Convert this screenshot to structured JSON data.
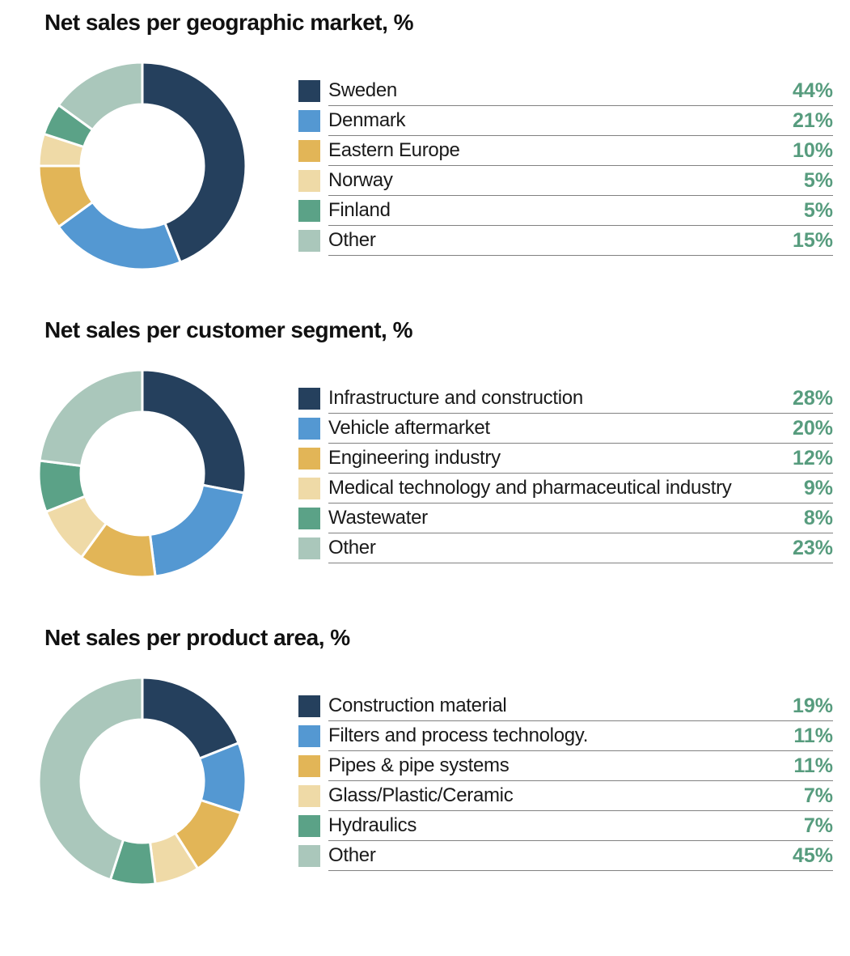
{
  "styles": {
    "percent_color": "#579c7e",
    "separator_color": "#818181",
    "title_color": "#111111",
    "background": "#ffffff"
  },
  "chart_data": [
    {
      "type": "pie",
      "donut": true,
      "title": "Net sales per geographic market, %",
      "categories": [
        "Sweden",
        "Denmark",
        "Eastern Europe",
        "Norway",
        "Finland",
        "Other"
      ],
      "values": [
        44,
        21,
        10,
        5,
        5,
        15
      ],
      "pct_labels": [
        "44%",
        "21%",
        "10%",
        "5%",
        "5%",
        "15%"
      ],
      "colors": [
        "#25405d",
        "#5498d2",
        "#e2b557",
        "#efdaa7",
        "#5ba287",
        "#aac7bb"
      ],
      "legend_position": "right",
      "start_angle_deg": -90,
      "direction": "clockwise"
    },
    {
      "type": "pie",
      "donut": true,
      "title": "Net sales per customer segment, %",
      "categories": [
        "Infrastructure and construction",
        "Vehicle aftermarket",
        "Engineering industry",
        "Medical technology and pharmaceutical industry",
        "Wastewater",
        "Other"
      ],
      "values": [
        28,
        20,
        12,
        9,
        8,
        23
      ],
      "pct_labels": [
        "28%",
        "20%",
        "12%",
        "9%",
        "8%",
        "23%"
      ],
      "colors": [
        "#25405d",
        "#5498d2",
        "#e2b557",
        "#efdaa7",
        "#5ba287",
        "#aac7bb"
      ],
      "legend_position": "right",
      "start_angle_deg": -90,
      "direction": "clockwise"
    },
    {
      "type": "pie",
      "donut": true,
      "title": "Net sales per product area, %",
      "categories": [
        "Construction material",
        "Filters and process technology.",
        "Pipes & pipe systems",
        "Glass/Plastic/Ceramic",
        "Hydraulics",
        "Other"
      ],
      "values": [
        19,
        11,
        11,
        7,
        7,
        45
      ],
      "pct_labels": [
        "19%",
        "11%",
        "11%",
        "7%",
        "7%",
        "45%"
      ],
      "colors": [
        "#25405d",
        "#5498d2",
        "#e2b557",
        "#efdaa7",
        "#5ba287",
        "#aac7bb"
      ],
      "legend_position": "right",
      "start_angle_deg": -90,
      "direction": "clockwise"
    }
  ]
}
